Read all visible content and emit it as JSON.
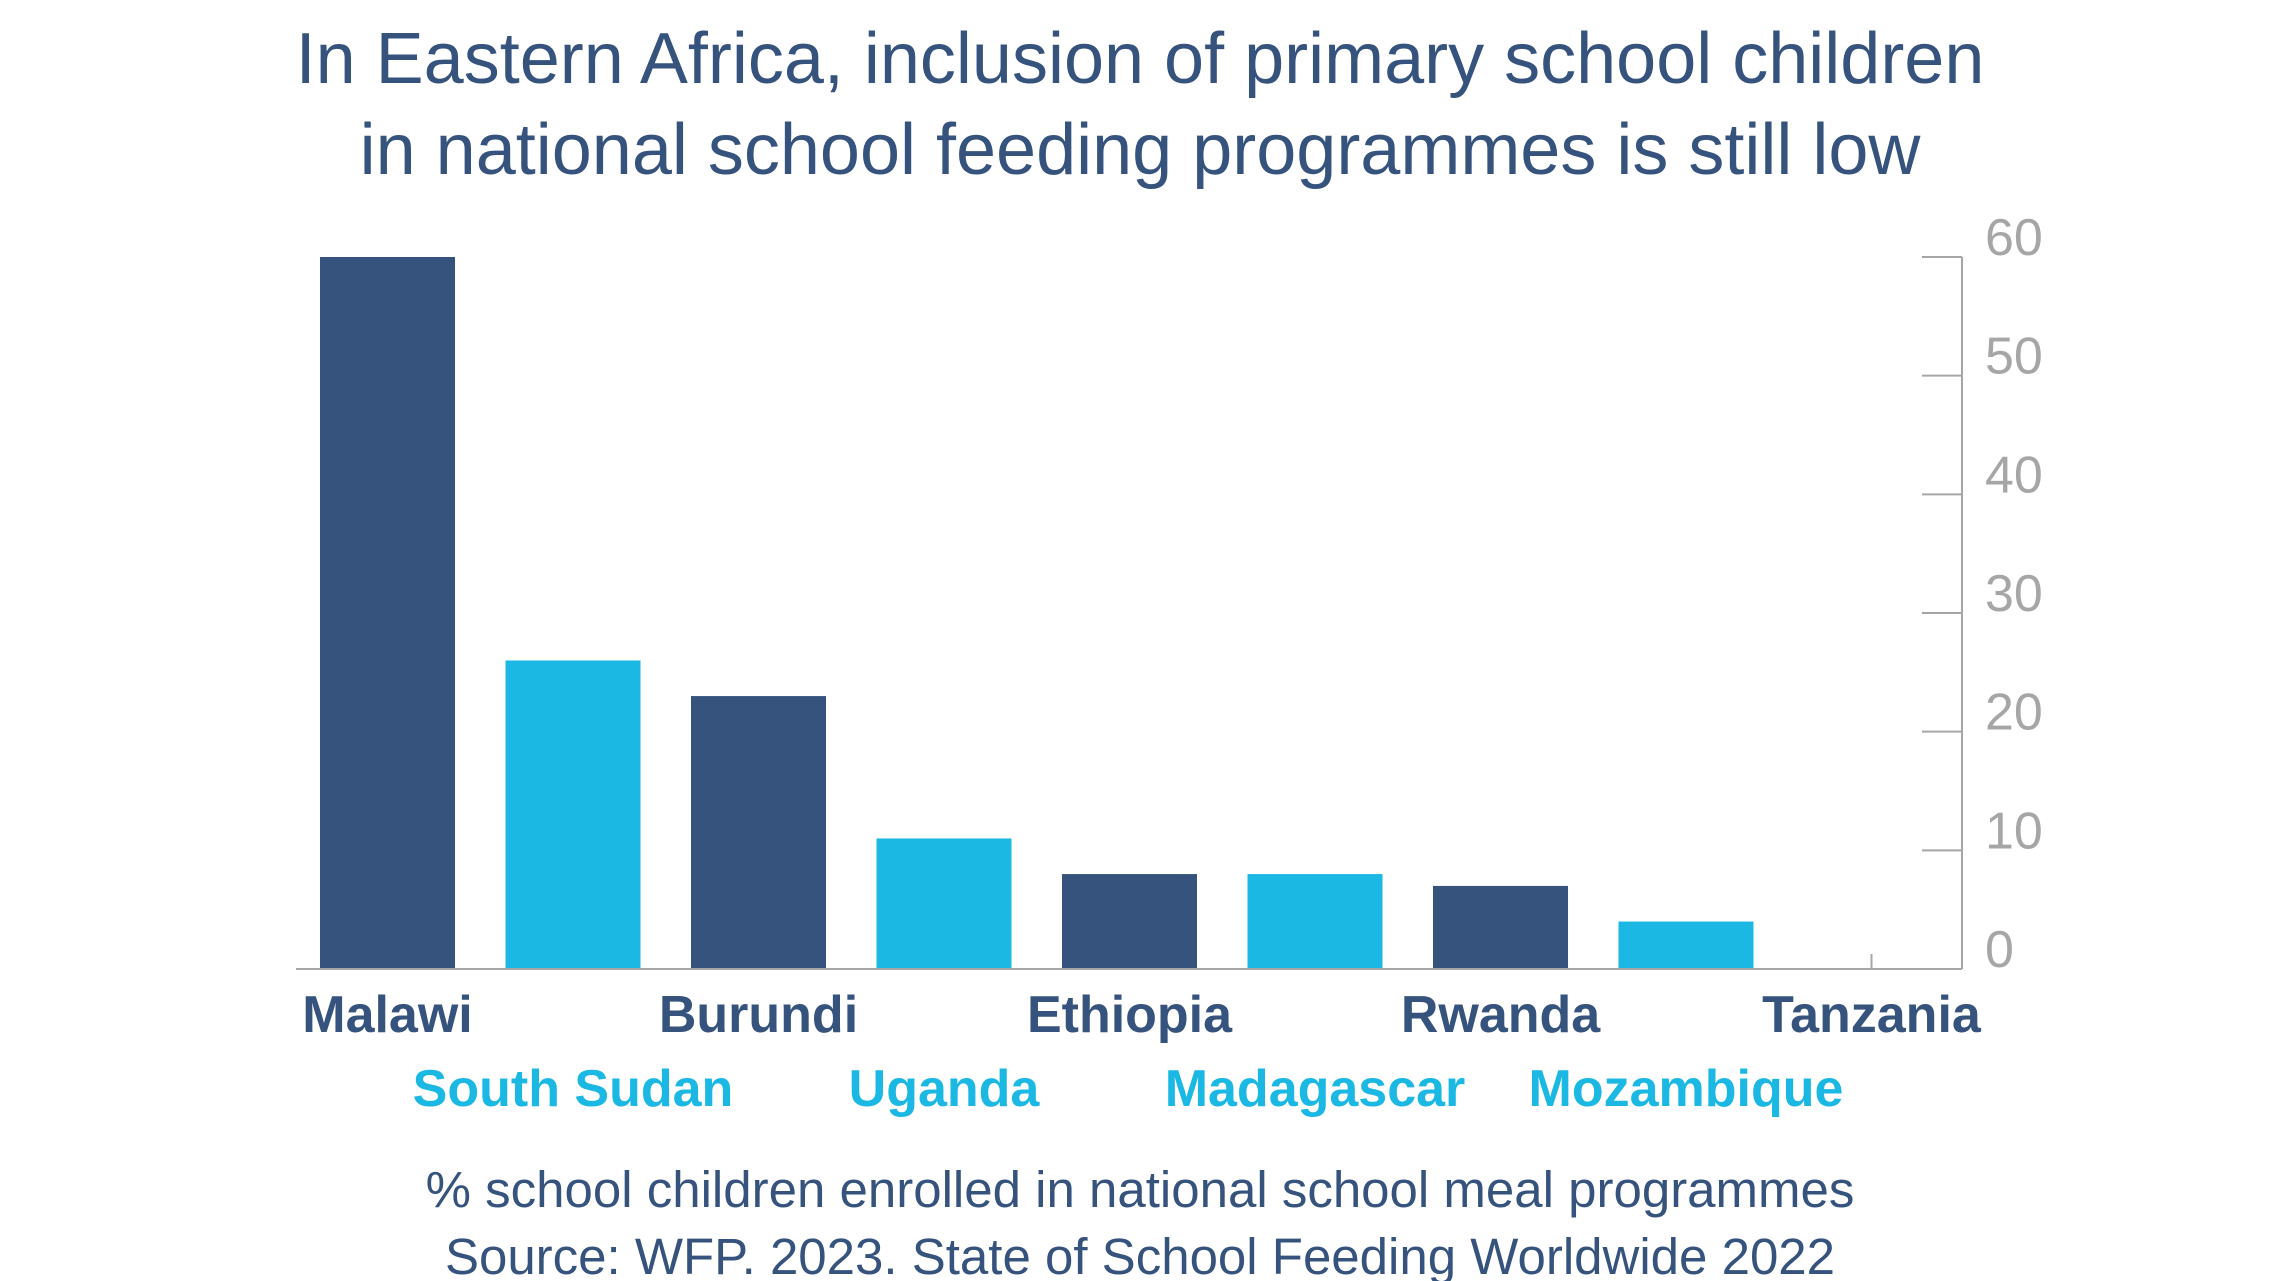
{
  "title_lines": [
    "In Eastern Africa, inclusion of primary school children",
    "in national school feeding programmes is still low"
  ],
  "footer": {
    "caption": "% school children enrolled in national school meal programmes",
    "source": "Source: WFP. 2023. State of School Feeding Worldwide 2022"
  },
  "colors": {
    "dark": "#36537e",
    "light": "#1cb8e4",
    "axis": "#a6a6a6",
    "tick_label": "#a6a6a6"
  },
  "chart_data": {
    "type": "bar",
    "categories": [
      "Malawi",
      "South Sudan",
      "Burundi",
      "Uganda",
      "Ethiopia",
      "Madagascar",
      "Rwanda",
      "Mozambique",
      "Tanzania"
    ],
    "values": [
      60,
      26,
      23,
      11,
      8,
      8,
      7,
      4,
      0
    ],
    "bar_colors": [
      "dark",
      "light",
      "dark",
      "light",
      "dark",
      "light",
      "dark",
      "light",
      "dark"
    ],
    "y_axis_position": "right",
    "ylim": [
      0,
      60
    ],
    "yticks": [
      0,
      10,
      20,
      30,
      40,
      50,
      60
    ],
    "grid": false,
    "legend": "none"
  }
}
